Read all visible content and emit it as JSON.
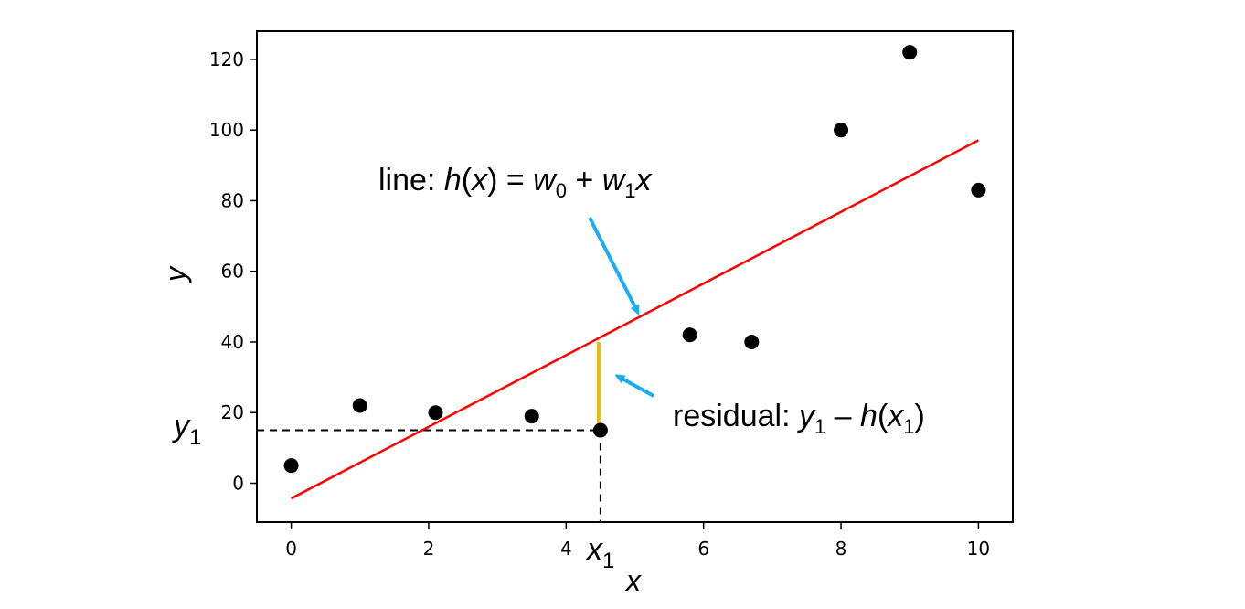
{
  "chart_data": {
    "type": "scatter",
    "xlabel": "x",
    "ylabel": "y",
    "xlim": [
      -0.5,
      10.5
    ],
    "ylim": [
      -11,
      128
    ],
    "xticks": [
      0,
      2,
      4,
      6,
      8,
      10
    ],
    "yticks": [
      0,
      20,
      40,
      60,
      80,
      100,
      120
    ],
    "grid": false,
    "points": [
      {
        "x": 0,
        "y": 5
      },
      {
        "x": 1,
        "y": 22
      },
      {
        "x": 2.1,
        "y": 20
      },
      {
        "x": 3.5,
        "y": 19
      },
      {
        "x": 4.5,
        "y": 15
      },
      {
        "x": 5.8,
        "y": 42
      },
      {
        "x": 6.7,
        "y": 40
      },
      {
        "x": 8,
        "y": 100
      },
      {
        "x": 9,
        "y": 122
      },
      {
        "x": 10,
        "y": 83
      }
    ],
    "point_color": "#000000",
    "fit_line": {
      "intercept": -4.3,
      "slope": 10.14,
      "x_range": [
        0,
        10
      ],
      "color": "#ff0000"
    },
    "highlight": {
      "x": 4.5,
      "y": 15,
      "fitted_y": 40,
      "x_marker_label": "x",
      "x_marker_sub": "1",
      "y_marker_label": "y",
      "y_marker_sub": "1",
      "residual_color": "#f5b800"
    },
    "annotations": {
      "line": {
        "prefix": "line: ",
        "h": "h",
        "open": "(",
        "x": "x",
        "close": ")",
        "equals": " = ",
        "w0": "w",
        "w0_sub": "0",
        "plus": " + ",
        "w1": "w",
        "w1_sub": "1",
        "x2": "x"
      },
      "residual": {
        "prefix": "residual: ",
        "y": "y",
        "y_sub": "1",
        "minus": " – ",
        "h": "h",
        "open": "(",
        "x": "x",
        "x_sub": "1",
        "close": ")"
      },
      "arrow_color": "#1aaef0"
    }
  }
}
